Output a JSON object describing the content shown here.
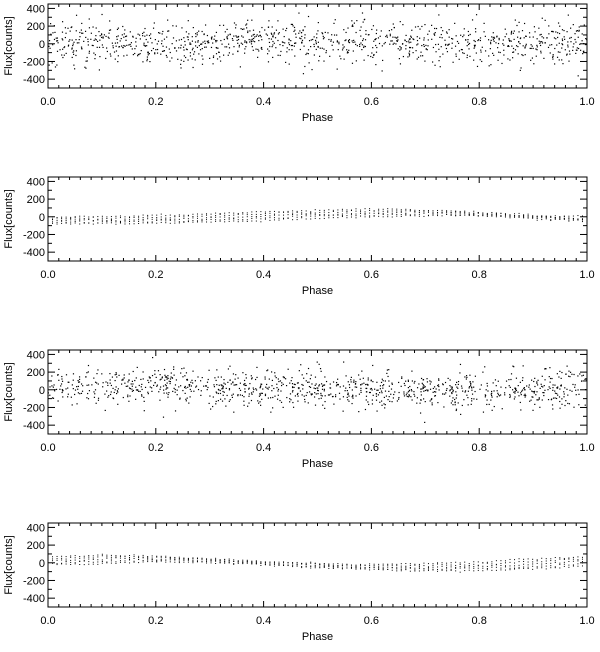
{
  "chart_data": [
    {
      "type": "scatter",
      "xlabel": "Phase",
      "ylabel": "Flux[counts]",
      "xlim": [
        0.0,
        1.0
      ],
      "ylim": [
        -500,
        450
      ],
      "x_ticks": [
        "0.0",
        "0.2",
        "0.4",
        "0.6",
        "0.8",
        "1.0"
      ],
      "y_ticks": [
        "400",
        "200",
        "0",
        "-200",
        "-400"
      ],
      "grid": false,
      "pattern": "noisy scatter around flat zero baseline",
      "trend": [
        [
          0.0,
          0
        ],
        [
          0.25,
          10
        ],
        [
          0.5,
          25
        ],
        [
          0.75,
          20
        ],
        [
          1.0,
          0
        ]
      ],
      "scatter_std": 120
    },
    {
      "type": "scatter",
      "xlabel": "Phase",
      "ylabel": "Flux[counts]",
      "xlim": [
        0.0,
        1.0
      ],
      "ylim": [
        -500,
        450
      ],
      "x_ticks": [
        "0.0",
        "0.2",
        "0.4",
        "0.6",
        "0.8",
        "1.0"
      ],
      "y_ticks": [
        "400",
        "200",
        "0",
        "-200",
        "-400"
      ],
      "grid": false,
      "pattern": "smooth sinusoidal dotted tracks",
      "trend": [
        [
          0.0,
          -40
        ],
        [
          0.15,
          -35
        ],
        [
          0.3,
          -15
        ],
        [
          0.45,
          20
        ],
        [
          0.6,
          45
        ],
        [
          0.7,
          50
        ],
        [
          0.8,
          30
        ],
        [
          0.9,
          0
        ],
        [
          1.0,
          -30
        ]
      ],
      "scatter_std": 25
    },
    {
      "type": "scatter",
      "xlabel": "Phase",
      "ylabel": "Flux[counts]",
      "xlim": [
        0.0,
        1.0
      ],
      "ylim": [
        -500,
        450
      ],
      "x_ticks": [
        "0.0",
        "0.2",
        "0.4",
        "0.6",
        "0.8",
        "1.0"
      ],
      "y_ticks": [
        "400",
        "200",
        "0",
        "-200",
        "-400"
      ],
      "grid": false,
      "pattern": "noisy scatter around zero baseline",
      "trend": [
        [
          0.0,
          40
        ],
        [
          0.2,
          40
        ],
        [
          0.4,
          10
        ],
        [
          0.6,
          -10
        ],
        [
          0.8,
          -20
        ],
        [
          1.0,
          20
        ]
      ],
      "scatter_std": 110
    },
    {
      "type": "scatter",
      "xlabel": "Phase",
      "ylabel": "Flux[counts]",
      "xlim": [
        0.0,
        1.0
      ],
      "ylim": [
        -500,
        450
      ],
      "x_ticks": [
        "0.0",
        "0.2",
        "0.4",
        "0.6",
        "0.8",
        "1.0"
      ],
      "y_ticks": [
        "400",
        "200",
        "0",
        "-200",
        "-400"
      ],
      "grid": false,
      "pattern": "smooth sinusoidal dotted tracks",
      "trend": [
        [
          0.0,
          20
        ],
        [
          0.15,
          50
        ],
        [
          0.3,
          30
        ],
        [
          0.45,
          -20
        ],
        [
          0.6,
          -50
        ],
        [
          0.7,
          -55
        ],
        [
          0.85,
          -30
        ],
        [
          1.0,
          20
        ]
      ],
      "scatter_std": 25
    }
  ]
}
